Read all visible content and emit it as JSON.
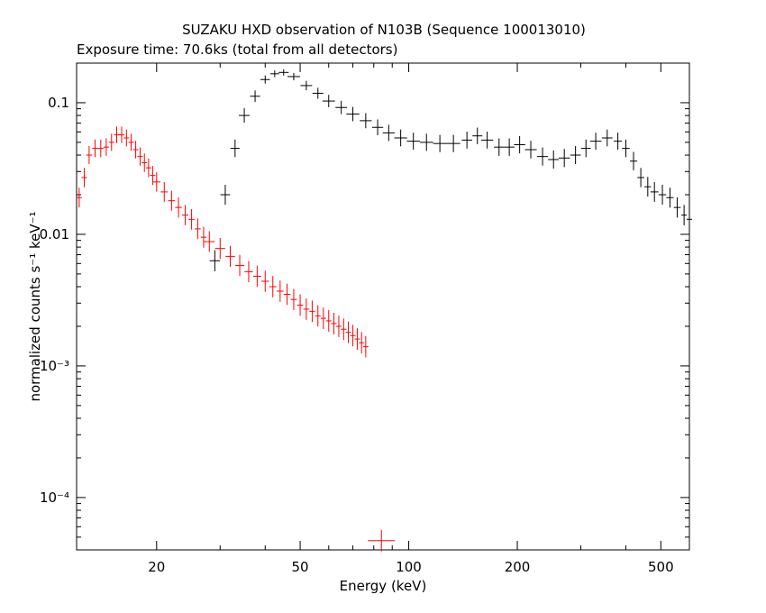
{
  "chart_data": {
    "type": "scatter",
    "title": "SUZAKU HXD observation of N103B (Sequence 100013010)",
    "subtitle": "Exposure time: 70.6ks (total from all detectors)",
    "xlabel": "Energy (keV)",
    "ylabel": "normalized counts s⁻¹ keV⁻¹",
    "xscale": "log",
    "yscale": "log",
    "xlim": [
      12.0,
      600.0
    ],
    "ylim": [
      4e-05,
      0.2
    ],
    "xticks": [
      20,
      50,
      100,
      200,
      500
    ],
    "xtick_labels": [
      "20",
      "50",
      "100",
      "200",
      "500"
    ],
    "yticks": [
      0.0001,
      0.001,
      0.01,
      0.1
    ],
    "ytick_labels": [
      "10⁻⁴",
      "10⁻³",
      "0.01",
      "0.1"
    ],
    "grid": false,
    "series": [
      {
        "color": "#000000",
        "points": [
          [
            29.0,
            0.0063
          ],
          [
            31.0,
            0.02
          ],
          [
            33.0,
            0.045
          ],
          [
            35.0,
            0.08
          ],
          [
            37.5,
            0.112
          ],
          [
            40.0,
            0.15
          ],
          [
            42.5,
            0.166
          ],
          [
            45.0,
            0.17
          ],
          [
            48.0,
            0.158
          ],
          [
            52.0,
            0.135
          ],
          [
            56.0,
            0.118
          ],
          [
            60.0,
            0.103
          ],
          [
            65.0,
            0.092
          ],
          [
            70.0,
            0.082
          ],
          [
            76.0,
            0.073
          ],
          [
            82.0,
            0.065
          ],
          [
            88.0,
            0.059
          ],
          [
            95.0,
            0.054
          ],
          [
            103.0,
            0.051
          ],
          [
            112.0,
            0.05
          ],
          [
            122.0,
            0.049
          ],
          [
            133.0,
            0.049
          ],
          [
            145.0,
            0.052
          ],
          [
            155.0,
            0.056
          ],
          [
            165.0,
            0.052
          ],
          [
            178.0,
            0.046
          ],
          [
            190.0,
            0.046
          ],
          [
            203.0,
            0.048
          ],
          [
            218.0,
            0.044
          ],
          [
            235.0,
            0.039
          ],
          [
            252.0,
            0.037
          ],
          [
            270.0,
            0.038
          ],
          [
            290.0,
            0.04
          ],
          [
            310.0,
            0.045
          ],
          [
            330.0,
            0.051
          ],
          [
            355.0,
            0.054
          ],
          [
            380.0,
            0.051
          ],
          [
            400.0,
            0.045
          ],
          [
            420.0,
            0.036
          ],
          [
            440.0,
            0.027
          ],
          [
            460.0,
            0.023
          ],
          [
            480.0,
            0.021
          ],
          [
            505.0,
            0.02
          ],
          [
            530.0,
            0.019
          ],
          [
            555.0,
            0.016
          ],
          [
            580.0,
            0.014
          ],
          [
            600.0,
            0.013
          ]
        ]
      },
      {
        "color": "#ff0000",
        "points": [
          [
            12.2,
            0.019
          ],
          [
            12.6,
            0.027
          ],
          [
            13.0,
            0.04
          ],
          [
            13.5,
            0.045
          ],
          [
            14.0,
            0.045
          ],
          [
            14.5,
            0.046
          ],
          [
            15.0,
            0.05
          ],
          [
            15.5,
            0.057
          ],
          [
            16.0,
            0.057
          ],
          [
            16.5,
            0.054
          ],
          [
            17.0,
            0.05
          ],
          [
            17.5,
            0.044
          ],
          [
            18.0,
            0.039
          ],
          [
            18.5,
            0.035
          ],
          [
            19.0,
            0.032
          ],
          [
            19.5,
            0.028
          ],
          [
            20.0,
            0.025
          ],
          [
            21.0,
            0.021
          ],
          [
            22.0,
            0.018
          ],
          [
            23.0,
            0.016
          ],
          [
            24.0,
            0.014
          ],
          [
            25.0,
            0.013
          ],
          [
            26.0,
            0.011
          ],
          [
            27.0,
            0.0095
          ],
          [
            28.0,
            0.0088
          ],
          [
            30.0,
            0.0078
          ],
          [
            32.0,
            0.0068
          ],
          [
            34.0,
            0.0058
          ],
          [
            36.0,
            0.0052
          ],
          [
            38.0,
            0.0048
          ],
          [
            40.0,
            0.0044
          ],
          [
            42.0,
            0.004
          ],
          [
            44.0,
            0.0037
          ],
          [
            46.0,
            0.0035
          ],
          [
            48.0,
            0.0032
          ],
          [
            50.0,
            0.0029
          ],
          [
            52.0,
            0.0027
          ],
          [
            54.0,
            0.0026
          ],
          [
            56.0,
            0.0024
          ],
          [
            58.0,
            0.0023
          ],
          [
            60.0,
            0.0022
          ],
          [
            62.0,
            0.0021
          ],
          [
            64.0,
            0.002
          ],
          [
            66.0,
            0.0019
          ],
          [
            68.0,
            0.0018
          ],
          [
            70.0,
            0.0017
          ],
          [
            72.0,
            0.0016
          ],
          [
            74.0,
            0.0015
          ],
          [
            76.0,
            0.0014
          ]
        ]
      },
      {
        "color": "#ff0000",
        "points": [
          [
            84.0,
            4.7e-05
          ]
        ]
      }
    ]
  }
}
